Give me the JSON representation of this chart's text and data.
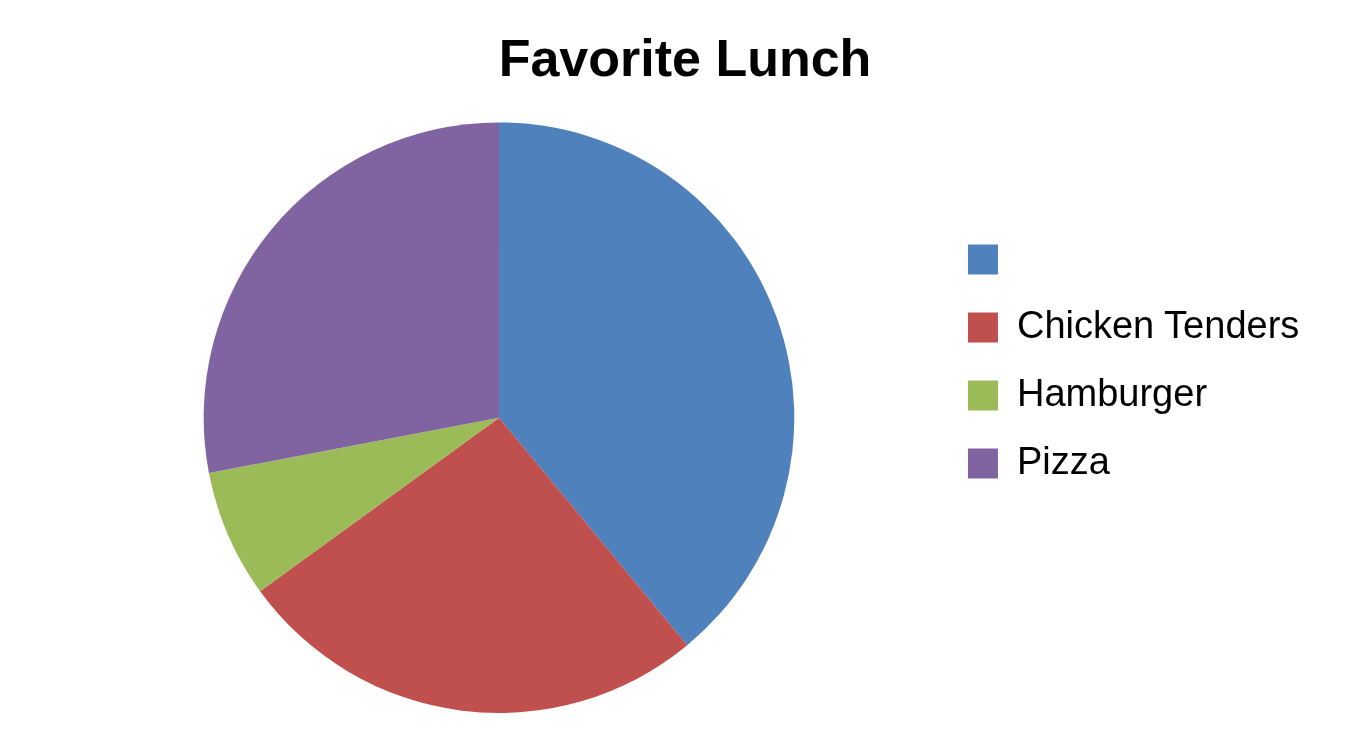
{
  "chart_data": {
    "type": "pie",
    "title": "Favorite Lunch",
    "categories": [
      null,
      "Chicken Tenders",
      "Hamburger",
      "Pizza"
    ],
    "values": [
      39,
      26,
      7,
      28
    ],
    "colors": [
      "#4f81bd",
      "#c0504d",
      "#9bbb59",
      "#8064a2"
    ],
    "legend": "right"
  }
}
